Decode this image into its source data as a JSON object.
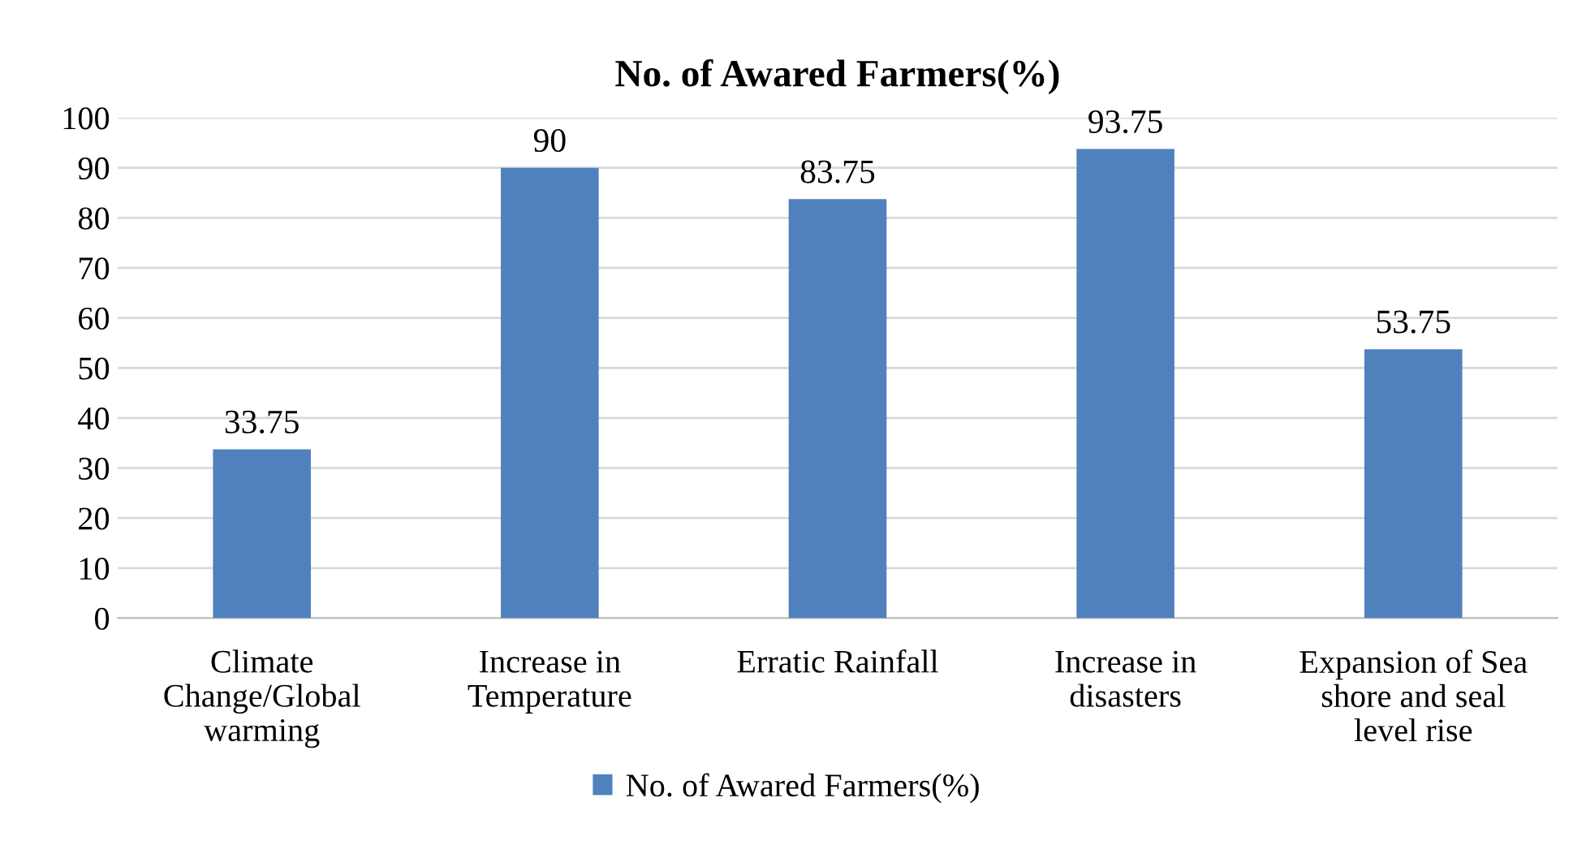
{
  "chart_data": {
    "type": "bar",
    "title": "No. of Awared Farmers(%)",
    "categories": [
      "Climate\nChange/Global\nwarming",
      "Increase in\nTemperature",
      "Erratic Rainfall",
      "Increase in\ndisasters",
      "Expansion of Sea\nshore and seal\nlevel rise"
    ],
    "series": [
      {
        "name": "No. of Awared Farmers(%)",
        "color": "#4f81bd",
        "values": [
          33.75,
          90,
          83.75,
          93.75,
          53.75
        ]
      }
    ],
    "ylim": [
      0,
      100
    ],
    "yticks": [
      0,
      10,
      20,
      30,
      40,
      50,
      60,
      70,
      80,
      90,
      100
    ],
    "grid": "y",
    "legend": "bottom",
    "data_labels": true
  }
}
